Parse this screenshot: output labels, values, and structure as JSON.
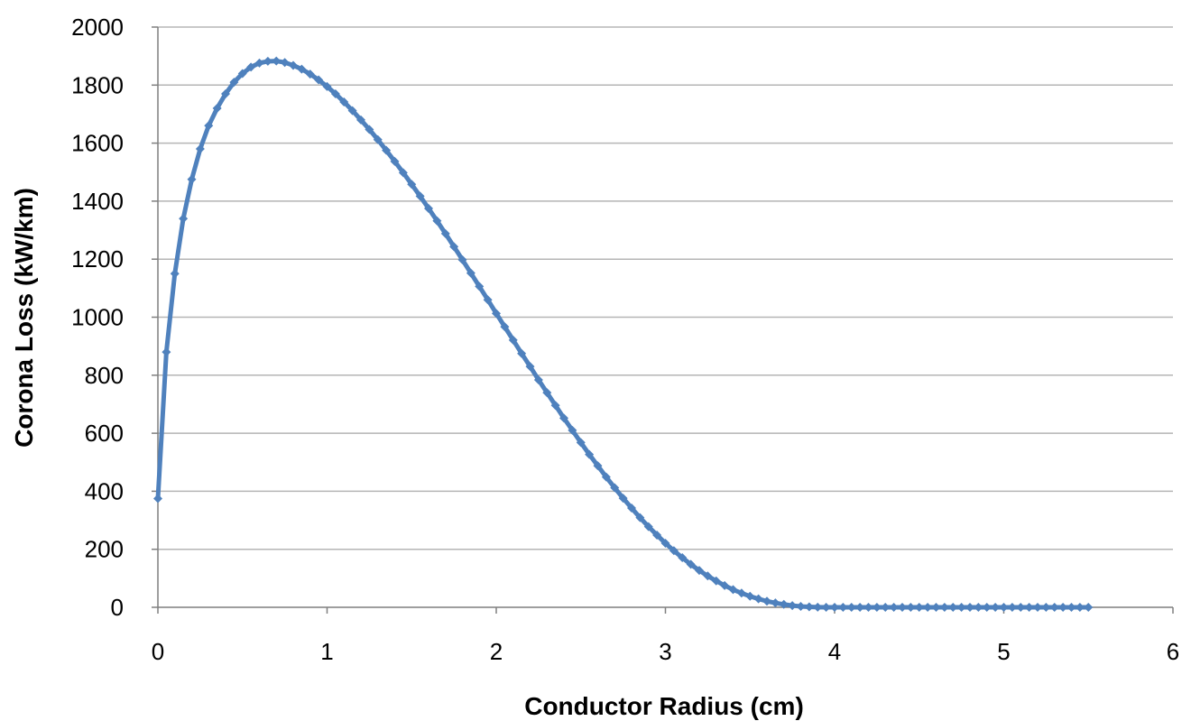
{
  "chart_data": {
    "type": "line",
    "title": "",
    "xlabel": "Conductor Radius (cm)",
    "ylabel": "Corona Loss (kW/km)",
    "xlim": [
      0,
      6
    ],
    "ylim": [
      0,
      2000
    ],
    "xticks": [
      "0",
      "1",
      "2",
      "3",
      "4",
      "5",
      "6"
    ],
    "yticks": [
      "0",
      "200",
      "400",
      "600",
      "800",
      "1000",
      "1200",
      "1400",
      "1600",
      "1800",
      "2000"
    ],
    "grid": "horizontal",
    "legend": "none",
    "marker": "diamond",
    "series_color": "#4f81bd",
    "series": [
      {
        "values": [
          [
            0.0,
            375
          ],
          [
            0.05,
            880
          ],
          [
            0.1,
            1150
          ],
          [
            0.15,
            1340
          ],
          [
            0.2,
            1475
          ],
          [
            0.25,
            1580
          ],
          [
            0.3,
            1660
          ],
          [
            0.35,
            1720
          ],
          [
            0.4,
            1770
          ],
          [
            0.45,
            1810
          ],
          [
            0.5,
            1840
          ],
          [
            0.55,
            1862
          ],
          [
            0.6,
            1876
          ],
          [
            0.65,
            1882
          ],
          [
            0.7,
            1883
          ],
          [
            0.75,
            1878
          ],
          [
            0.8,
            1868
          ],
          [
            0.85,
            1855
          ],
          [
            0.9,
            1838
          ],
          [
            0.95,
            1818
          ],
          [
            1.0,
            1795
          ],
          [
            1.05,
            1770
          ],
          [
            1.1,
            1742
          ],
          [
            1.15,
            1712
          ],
          [
            1.2,
            1680
          ],
          [
            1.25,
            1647
          ],
          [
            1.3,
            1612
          ],
          [
            1.35,
            1575
          ],
          [
            1.4,
            1537
          ],
          [
            1.45,
            1498
          ],
          [
            1.5,
            1458
          ],
          [
            1.55,
            1417
          ],
          [
            1.6,
            1375
          ],
          [
            1.65,
            1332
          ],
          [
            1.7,
            1288
          ],
          [
            1.75,
            1243
          ],
          [
            1.8,
            1198
          ],
          [
            1.85,
            1152
          ],
          [
            1.9,
            1106
          ],
          [
            1.95,
            1060
          ],
          [
            2.0,
            1013
          ],
          [
            2.05,
            967
          ],
          [
            2.1,
            921
          ],
          [
            2.15,
            875
          ],
          [
            2.2,
            830
          ],
          [
            2.25,
            784
          ],
          [
            2.3,
            740
          ],
          [
            2.35,
            696
          ],
          [
            2.4,
            652
          ],
          [
            2.45,
            610
          ],
          [
            2.5,
            568
          ],
          [
            2.55,
            527
          ],
          [
            2.6,
            488
          ],
          [
            2.65,
            449
          ],
          [
            2.7,
            412
          ],
          [
            2.75,
            376
          ],
          [
            2.8,
            342
          ],
          [
            2.85,
            309
          ],
          [
            2.9,
            278
          ],
          [
            2.95,
            249
          ],
          [
            3.0,
            221
          ],
          [
            3.05,
            195
          ],
          [
            3.1,
            171
          ],
          [
            3.15,
            148
          ],
          [
            3.2,
            127
          ],
          [
            3.25,
            108
          ],
          [
            3.3,
            91
          ],
          [
            3.35,
            75
          ],
          [
            3.4,
            61
          ],
          [
            3.45,
            49
          ],
          [
            3.5,
            38
          ],
          [
            3.55,
            29
          ],
          [
            3.6,
            21
          ],
          [
            3.65,
            15
          ],
          [
            3.7,
            10
          ],
          [
            3.75,
            6
          ],
          [
            3.8,
            3
          ],
          [
            3.85,
            1.5
          ],
          [
            3.9,
            0.5
          ],
          [
            3.95,
            0
          ],
          [
            4.0,
            0
          ],
          [
            4.05,
            0
          ],
          [
            4.1,
            0
          ],
          [
            4.15,
            0
          ],
          [
            4.2,
            0
          ],
          [
            4.25,
            0
          ],
          [
            4.3,
            0
          ],
          [
            4.35,
            0
          ],
          [
            4.4,
            0
          ],
          [
            4.45,
            0
          ],
          [
            4.5,
            0
          ],
          [
            4.55,
            0
          ],
          [
            4.6,
            0
          ],
          [
            4.65,
            0
          ],
          [
            4.7,
            0
          ],
          [
            4.75,
            0
          ],
          [
            4.8,
            0
          ],
          [
            4.85,
            0
          ],
          [
            4.9,
            0
          ],
          [
            4.95,
            0
          ],
          [
            5.0,
            0
          ],
          [
            5.05,
            0
          ],
          [
            5.1,
            0
          ],
          [
            5.15,
            0
          ],
          [
            5.2,
            0
          ],
          [
            5.25,
            0
          ],
          [
            5.3,
            0
          ],
          [
            5.35,
            0
          ],
          [
            5.4,
            0
          ],
          [
            5.45,
            0
          ],
          [
            5.5,
            0
          ]
        ]
      }
    ]
  }
}
